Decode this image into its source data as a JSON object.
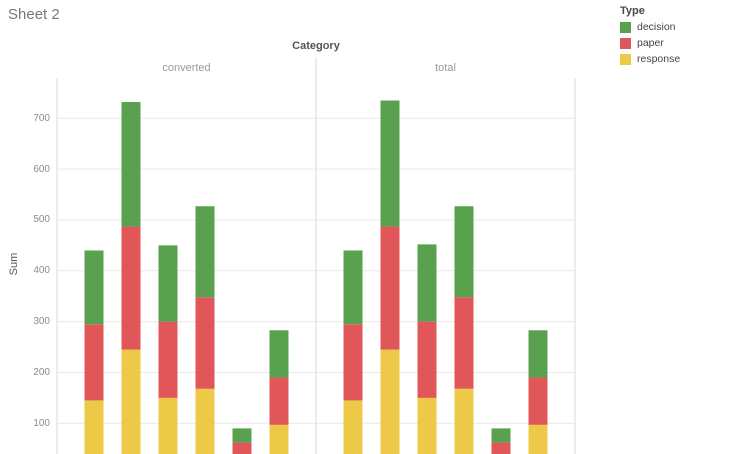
{
  "title": "Sheet 2",
  "legend": {
    "title": "Type",
    "items": [
      {
        "label": "decision",
        "color": "#59A14F"
      },
      {
        "label": "paper",
        "color": "#E15759"
      },
      {
        "label": "response",
        "color": "#EDC948"
      }
    ]
  },
  "chart_data": {
    "type": "bar",
    "stacked": true,
    "title": "Sheet 2",
    "panel_header": "Category",
    "panels": [
      "converted",
      "total"
    ],
    "ylabel": "Sum",
    "xlabel": "",
    "yticks": [
      100,
      200,
      300,
      400,
      500,
      600,
      700
    ],
    "ylim_visible": [
      40,
      780
    ],
    "grid": "horizontal",
    "legend_position": "top-right",
    "series_order": [
      "response",
      "paper",
      "decision"
    ],
    "colors": {
      "decision": "#59A14F",
      "paper": "#E15759",
      "response": "#EDC948"
    },
    "bars": {
      "converted": [
        {
          "response": 145,
          "paper": 150,
          "decision": 145
        },
        {
          "response": 245,
          "paper": 242,
          "decision": 245
        },
        {
          "response": 150,
          "paper": 150,
          "decision": 150
        },
        {
          "response": 168,
          "paper": 180,
          "decision": 179
        },
        {
          "response": 35,
          "paper": 27,
          "decision": 28
        },
        {
          "response": 97,
          "paper": 93,
          "decision": 93
        }
      ],
      "total": [
        {
          "response": 145,
          "paper": 150,
          "decision": 145
        },
        {
          "response": 245,
          "paper": 242,
          "decision": 248
        },
        {
          "response": 150,
          "paper": 150,
          "decision": 152
        },
        {
          "response": 168,
          "paper": 180,
          "decision": 179
        },
        {
          "response": 35,
          "paper": 27,
          "decision": 28
        },
        {
          "response": 97,
          "paper": 93,
          "decision": 93
        }
      ]
    }
  }
}
